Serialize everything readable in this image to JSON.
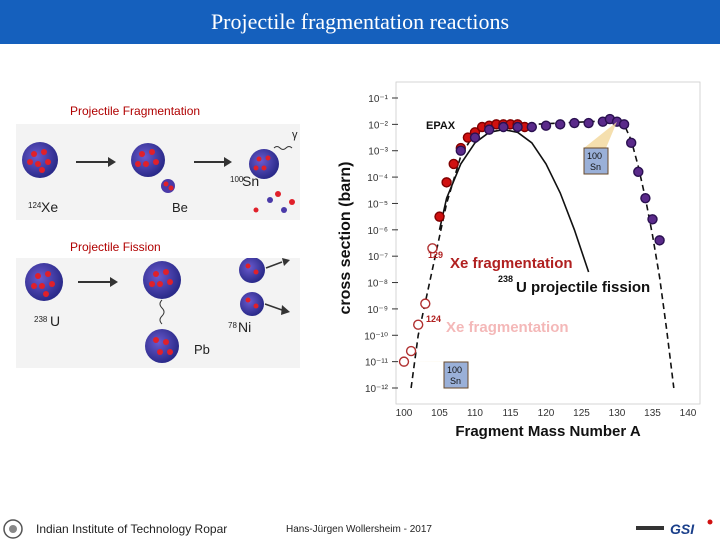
{
  "slide": {
    "title": "Projectile fragmentation reactions"
  },
  "left_panels": {
    "fragmentation": {
      "heading": "Projectile Fragmentation",
      "projectile": "124",
      "projectile_sym": "Xe",
      "product": "100",
      "product_sym": "Sn",
      "target": "Be",
      "gamma": "γ"
    },
    "fission": {
      "heading": "Projectile Fission",
      "projectile": "238",
      "projectile_sym": "U",
      "product": "78",
      "product_sym": "Ni",
      "target": "Pb"
    }
  },
  "chart_data": {
    "type": "line",
    "xlabel": "Fragment Mass Number A",
    "ylabel": "cross section (barn)",
    "x_ticks": [
      "100",
      "105",
      "110",
      "115",
      "120",
      "125",
      "130",
      "135",
      "140"
    ],
    "y_ticks": [
      "10⁻¹",
      "10⁻²",
      "10⁻³",
      "10⁻⁴",
      "10⁻⁵",
      "10⁻⁶",
      "10⁻⁷",
      "10⁻⁸",
      "10⁻⁹",
      "10⁻¹⁰",
      "10⁻¹¹",
      "10⁻¹²"
    ],
    "xlim": [
      100,
      140
    ],
    "ylim_exp": [
      -12,
      -1
    ],
    "log_y": true,
    "annotations": {
      "epax": "EPAX",
      "xe129": "129",
      "xe129_text": "Xe fragmentation",
      "u238": "238",
      "u238_text": "U projectile fission",
      "xe124": "124",
      "xe124_text": "Xe fragmentation",
      "sn_top": "100",
      "sn_top_sym": "Sn",
      "sn_bottom": "100",
      "sn_bottom_sym": "Sn"
    },
    "series": [
      {
        "name": "124Xe fragmentation data",
        "marker": "open-circle",
        "x": [
          100,
          101,
          102,
          103,
          104
        ],
        "y": [
          -11.0,
          -10.6,
          -9.6,
          -8.8,
          -6.7
        ]
      },
      {
        "name": "129Xe fragmentation data",
        "marker": "filled-circle",
        "x": [
          105,
          106,
          107,
          108,
          109,
          110,
          111,
          112,
          113,
          114,
          115,
          116,
          117
        ],
        "y": [
          -5.5,
          -4.2,
          -3.5,
          -2.9,
          -2.5,
          -2.3,
          -2.1,
          -2.05,
          -2.0,
          -2.0,
          -2.0,
          -2.0,
          -2.1
        ]
      },
      {
        "name": "238U projectile fission data",
        "marker": "filled-circle",
        "x": [
          108,
          110,
          112,
          114,
          116,
          118,
          120,
          122,
          124,
          126,
          128,
          129,
          130,
          131,
          132,
          133,
          134,
          135,
          136
        ],
        "y": [
          -3.0,
          -2.5,
          -2.2,
          -2.1,
          -2.1,
          -2.1,
          -2.05,
          -2.0,
          -1.95,
          -1.95,
          -1.9,
          -1.8,
          -1.9,
          -2.0,
          -2.7,
          -3.8,
          -4.8,
          -5.6,
          -6.4
        ]
      },
      {
        "name": "EPAX",
        "style": "solid",
        "x": [
          105,
          106,
          108,
          110,
          112,
          114,
          116,
          118,
          120,
          122,
          124,
          126
        ],
        "y": [
          -6.0,
          -4.8,
          -3.5,
          -2.7,
          -2.3,
          -2.2,
          -2.3,
          -2.7,
          -3.5,
          -4.6,
          -6.0,
          -7.6
        ]
      },
      {
        "name": "dashed fit",
        "style": "dashed",
        "x": [
          101,
          102,
          104,
          106,
          108,
          110,
          114,
          118,
          122,
          126,
          130,
          131,
          132,
          133,
          134,
          135,
          136,
          137,
          138
        ],
        "y": [
          -12.0,
          -10.0,
          -7.5,
          -5.0,
          -3.2,
          -2.3,
          -2.0,
          -2.0,
          -1.95,
          -1.9,
          -1.85,
          -2.0,
          -2.6,
          -3.6,
          -4.8,
          -6.2,
          -7.8,
          -9.8,
          -12.0
        ]
      }
    ]
  },
  "footer": {
    "institute": "Indian Institute of Technology Ropar",
    "author": "Hans-Jürgen Wollersheim - 2017",
    "logo_text": "GSI"
  },
  "colors": {
    "title_bg": "#1560bd",
    "open_marker": "#b03030",
    "red_marker": "#d01010",
    "purple_marker": "#5a2a8a"
  }
}
